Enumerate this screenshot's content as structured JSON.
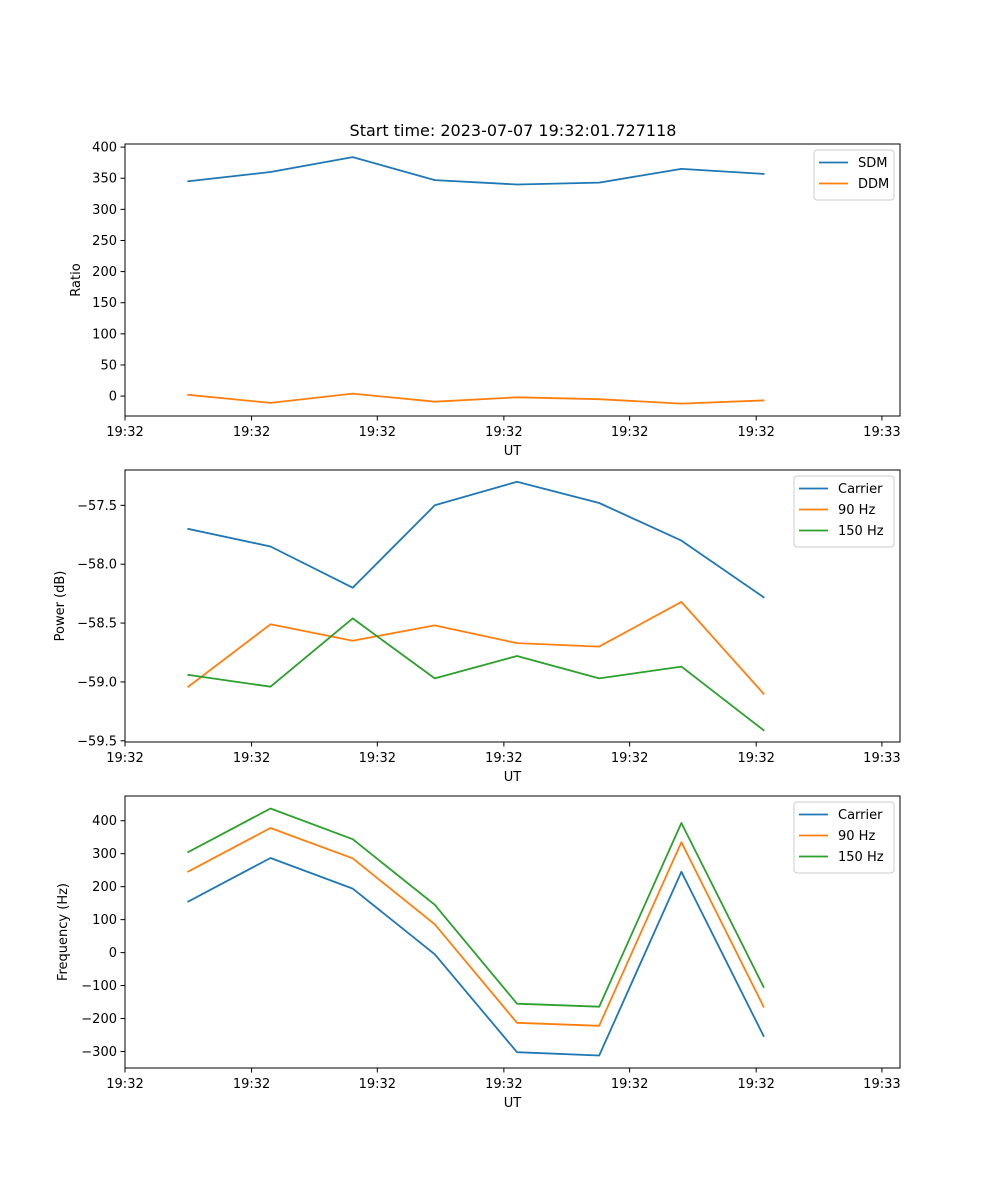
{
  "figure_title": "Start time: 2023-07-07 19:32:01.727118",
  "series_colors": [
    "#1f77b4",
    "#ff7f0e",
    "#2ca02c"
  ],
  "chart_data": [
    {
      "type": "line",
      "title": "Start time: 2023-07-07 19:32:01.727118",
      "xlabel": "UT",
      "ylabel": "Ratio",
      "x": [
        1,
        2,
        3,
        4,
        5,
        6,
        7,
        8
      ],
      "xlim": [
        0.23,
        9.66
      ],
      "x_ticks": [
        0.23,
        1.77,
        3.3,
        4.84,
        6.37,
        7.91,
        9.44
      ],
      "x_tick_labels": [
        "19:32",
        "19:32",
        "19:32",
        "19:32",
        "19:32",
        "19:32",
        "19:33"
      ],
      "ylim": [
        -32,
        405
      ],
      "y_ticks": [
        0,
        50,
        100,
        150,
        200,
        250,
        300,
        350,
        400
      ],
      "y_tick_labels": [
        "0",
        "50",
        "100",
        "150",
        "200",
        "250",
        "300",
        "350",
        "400"
      ],
      "legend": "top-right",
      "series": [
        {
          "name": "SDM",
          "color": "#1f77b4",
          "values": [
            345,
            360,
            384,
            347,
            340,
            343,
            365,
            357
          ]
        },
        {
          "name": "DDM",
          "color": "#ff7f0e",
          "values": [
            2,
            -11,
            4,
            -9,
            -2,
            -5,
            -12,
            -7
          ]
        }
      ]
    },
    {
      "type": "line",
      "xlabel": "UT",
      "ylabel": "Power (dB)",
      "x": [
        1,
        2,
        3,
        4,
        5,
        6,
        7,
        8
      ],
      "xlim": [
        0.23,
        9.66
      ],
      "x_ticks": [
        0.23,
        1.77,
        3.3,
        4.84,
        6.37,
        7.91,
        9.44
      ],
      "x_tick_labels": [
        "19:32",
        "19:32",
        "19:32",
        "19:32",
        "19:32",
        "19:32",
        "19:33"
      ],
      "ylim": [
        -59.51,
        -57.2
      ],
      "y_ticks": [
        -59.5,
        -59.0,
        -58.5,
        -58.0,
        -57.5
      ],
      "y_tick_labels": [
        "−59.5",
        "−59.0",
        "−58.5",
        "−58.0",
        "−57.5"
      ],
      "legend": "top-right",
      "series": [
        {
          "name": "Carrier",
          "color": "#1f77b4",
          "values": [
            -57.7,
            -57.85,
            -58.2,
            -57.5,
            -57.3,
            -57.48,
            -57.8,
            -58.28
          ]
        },
        {
          "name": "90 Hz",
          "color": "#ff7f0e",
          "values": [
            -59.04,
            -58.51,
            -58.65,
            -58.52,
            -58.67,
            -58.7,
            -58.32,
            -59.1
          ]
        },
        {
          "name": "150 Hz",
          "color": "#2ca02c",
          "values": [
            -58.94,
            -59.04,
            -58.46,
            -58.97,
            -58.78,
            -58.97,
            -58.87,
            -59.41
          ]
        }
      ]
    },
    {
      "type": "line",
      "xlabel": "UT",
      "ylabel": "Frequency (Hz)",
      "x": [
        1,
        2,
        3,
        4,
        5,
        6,
        7,
        8
      ],
      "xlim": [
        0.23,
        9.66
      ],
      "x_ticks": [
        0.23,
        1.77,
        3.3,
        4.84,
        6.37,
        7.91,
        9.44
      ],
      "x_tick_labels": [
        "19:32",
        "19:32",
        "19:32",
        "19:32",
        "19:32",
        "19:32",
        "19:33"
      ],
      "ylim": [
        -350,
        475
      ],
      "y_ticks": [
        -300,
        -200,
        -100,
        0,
        100,
        200,
        300,
        400
      ],
      "y_tick_labels": [
        "−300",
        "−200",
        "−100",
        "0",
        "100",
        "200",
        "300",
        "400"
      ],
      "legend": "top-right",
      "series": [
        {
          "name": "Carrier",
          "color": "#1f77b4",
          "values": [
            155,
            287,
            194,
            -5,
            -302,
            -312,
            245,
            -253
          ]
        },
        {
          "name": "90 Hz",
          "color": "#ff7f0e",
          "values": [
            246,
            378,
            286,
            86,
            -213,
            -222,
            335,
            -164
          ]
        },
        {
          "name": "150 Hz",
          "color": "#2ca02c",
          "values": [
            305,
            437,
            344,
            145,
            -155,
            -164,
            393,
            -104
          ]
        }
      ]
    }
  ]
}
